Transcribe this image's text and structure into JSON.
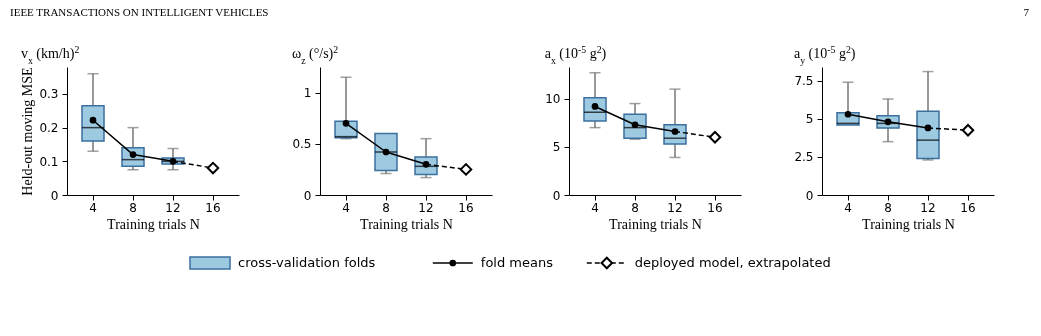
{
  "chart_data": [
    {
      "type": "box",
      "title": "v$_{x}$ (km/h)$^{2}$",
      "xlabel": "Training trials N",
      "ylabel": "Held-out moving MSE",
      "categories": [
        "4",
        "8",
        "12",
        "16"
      ],
      "ylim": [
        0,
        0.38
      ],
      "yticks": [
        0,
        0.1,
        0.2,
        0.3
      ],
      "legend": "bottom",
      "annotations": [
        "IEEE TRANSACTIONS ON INTELLIGENT VEHICLES",
        "7"
      ],
      "series": [
        {
          "name": "cross-validation folds",
          "color": "#9ecae1",
          "boxes": [
            {
              "low": 0.13,
              "q1": 0.16,
              "median": 0.2,
              "q3": 0.265,
              "high": 0.36
            },
            {
              "low": 0.075,
              "q1": 0.085,
              "median": 0.105,
              "q3": 0.14,
              "high": 0.2
            },
            {
              "low": 0.075,
              "q1": 0.092,
              "median": 0.1,
              "q3": 0.11,
              "high": 0.138
            },
            null
          ]
        },
        {
          "name": "fold means",
          "type": "line",
          "color": "#000000",
          "marker": "circle",
          "values": [
            0.222,
            0.12,
            0.1,
            null
          ]
        },
        {
          "name": "deployed model, extrapolated",
          "type": "line",
          "color": "#000000",
          "marker": "diamond",
          "line_style": "dashed",
          "values": [
            null,
            null,
            0.1,
            0.08
          ]
        }
      ]
    },
    {
      "type": "box",
      "title": "ω$_{z}$ (°/s)$^{2}$",
      "xlabel": "Training trials N",
      "categories": [
        "4",
        "8",
        "12",
        "16"
      ],
      "ylim": [
        0,
        1.25
      ],
      "yticks": [
        0,
        0.5,
        1
      ],
      "series": [
        {
          "color": "#9ecae1",
          "boxes": [
            {
              "low": 0.55,
              "q1": 0.56,
              "median": 0.57,
              "q3": 0.72,
              "high": 1.15
            },
            {
              "low": 0.21,
              "q1": 0.24,
              "median": 0.42,
              "q3": 0.6,
              "high": 0.6
            },
            {
              "low": 0.17,
              "q1": 0.2,
              "median": 0.28,
              "q3": 0.37,
              "high": 0.55
            },
            null
          ]
        },
        {
          "type": "line",
          "color": "#000000",
          "marker": "circle",
          "values": [
            0.7,
            0.42,
            0.3,
            null
          ]
        },
        {
          "type": "line",
          "color": "#000000",
          "marker": "diamond",
          "line_style": "dashed",
          "values": [
            null,
            null,
            0.3,
            0.25
          ]
        }
      ]
    },
    {
      "type": "box",
      "title": "a$_{x}$ (10$^{-5}$ g$^{2}$)",
      "xlabel": "Training trials N",
      "categories": [
        "4",
        "8",
        "12",
        "16"
      ],
      "ylim": [
        0,
        13.3
      ],
      "yticks": [
        0,
        5,
        10
      ],
      "series": [
        {
          "color": "#9ecae1",
          "boxes": [
            {
              "low": 7.0,
              "q1": 7.7,
              "median": 8.6,
              "q3": 10.1,
              "high": 12.7
            },
            {
              "low": 5.8,
              "q1": 5.9,
              "median": 7.0,
              "q3": 8.4,
              "high": 9.5
            },
            {
              "low": 3.9,
              "q1": 5.3,
              "median": 5.9,
              "q3": 7.3,
              "high": 11.0
            },
            null
          ]
        },
        {
          "type": "line",
          "color": "#000000",
          "marker": "circle",
          "values": [
            9.2,
            7.3,
            6.6,
            null
          ]
        },
        {
          "type": "line",
          "color": "#000000",
          "marker": "diamond",
          "line_style": "dashed",
          "values": [
            null,
            null,
            6.6,
            6.0
          ]
        }
      ]
    },
    {
      "type": "box",
      "title": "a$_{y}$ (10$^{-5}$ g$^{2}$)",
      "xlabel": "Training trials N",
      "categories": [
        "4",
        "8",
        "12",
        "16"
      ],
      "ylim": [
        0,
        8.4
      ],
      "yticks": [
        0,
        2.5,
        5,
        7.5
      ],
      "series": [
        {
          "color": "#9ecae1",
          "boxes": [
            {
              "low": 4.6,
              "q1": 4.6,
              "median": 4.7,
              "q3": 5.4,
              "high": 7.4
            },
            {
              "low": 3.5,
              "q1": 4.4,
              "median": 4.7,
              "q3": 5.2,
              "high": 6.3
            },
            {
              "low": 2.3,
              "q1": 2.4,
              "median": 3.6,
              "q3": 5.5,
              "high": 8.1
            },
            null
          ]
        },
        {
          "type": "line",
          "color": "#000000",
          "marker": "circle",
          "values": [
            5.3,
            4.8,
            4.4,
            null
          ]
        },
        {
          "type": "line",
          "color": "#000000",
          "marker": "diamond",
          "line_style": "dashed",
          "values": [
            null,
            null,
            4.4,
            4.25
          ]
        }
      ]
    }
  ]
}
